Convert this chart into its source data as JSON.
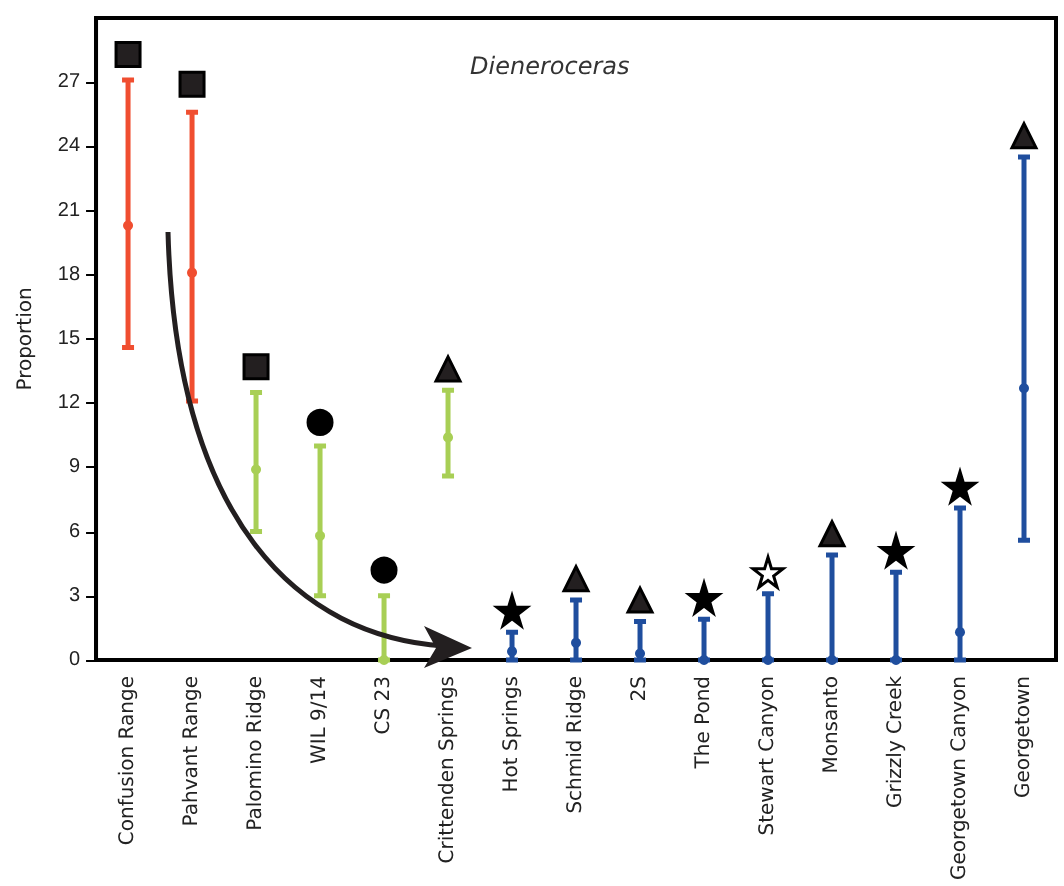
{
  "chart_data": {
    "type": "scatter",
    "title": "Dieneroceras",
    "ylabel": "Proportion",
    "categories": [
      "Confusion Range",
      "Pahvant Range",
      "Palomino Ridge",
      "WIL 9/14",
      "CS 23",
      "Crittenden Springs",
      "Hot Springs",
      "Schmid Ridge",
      "2S",
      "The Pond",
      "Stewart Canyon",
      "Monsanto",
      "Grizzly Creek",
      "Georgetown Canyon",
      "Georgetown"
    ],
    "ylim": [
      0,
      30
    ],
    "yticks": [
      0,
      3,
      6,
      9,
      12,
      15,
      18,
      21,
      24,
      27
    ],
    "grid": false,
    "series": [
      {
        "marker": "circle",
        "colors": [
          "#f04e30",
          "#f04e30",
          "#a8cf55",
          "#a8cf55",
          "#a8cf55",
          "#a8cf55",
          "#1f4e9e",
          "#1f4e9e",
          "#1f4e9e",
          "#1f4e9e",
          "#1f4e9e",
          "#1f4e9e",
          "#1f4e9e",
          "#1f4e9e",
          "#1f4e9e"
        ],
        "values": [
          20.3,
          18.1,
          8.9,
          5.8,
          0,
          10.4,
          0.4,
          0.8,
          0.3,
          0,
          0,
          0,
          0,
          1.3,
          12.7
        ],
        "errors": [
          [
            14.6,
            27.1
          ],
          [
            12.1,
            25.6
          ],
          [
            6.0,
            12.5
          ],
          [
            3.0,
            10.0
          ],
          [
            0,
            3.0
          ],
          [
            8.6,
            12.6
          ],
          [
            0,
            1.3
          ],
          [
            0,
            2.8
          ],
          [
            0,
            1.8
          ],
          [
            0,
            1.9
          ],
          [
            0,
            3.1
          ],
          [
            0,
            4.9
          ],
          [
            0,
            4.1
          ],
          [
            0,
            7.1
          ],
          [
            5.6,
            23.5
          ]
        ]
      },
      {
        "marker": "square",
        "color": "#231f20",
        "values": [
          28.3,
          26.9,
          13.7,
          null,
          null,
          null,
          null,
          null,
          null,
          null,
          null,
          null,
          null,
          null,
          null
        ]
      },
      {
        "marker": "circle",
        "color": "#000000",
        "values": [
          null,
          null,
          null,
          11.1,
          4.2,
          null,
          null,
          null,
          null,
          null,
          null,
          null,
          null,
          null,
          null
        ]
      },
      {
        "marker": "triangle",
        "color": "#231f20",
        "values": [
          null,
          null,
          null,
          null,
          null,
          13.6,
          null,
          3.8,
          2.8,
          null,
          null,
          5.9,
          null,
          null,
          24.5
        ]
      },
      {
        "marker": "star",
        "color": "#000000",
        "values": [
          null,
          null,
          null,
          null,
          null,
          null,
          2.3,
          null,
          null,
          2.9,
          null,
          null,
          5.1,
          8.1,
          null
        ]
      },
      {
        "marker": "star",
        "color": "#ffffff",
        "values": [
          null,
          null,
          null,
          null,
          null,
          null,
          null,
          null,
          null,
          null,
          4.1,
          null,
          null,
          null,
          null
        ]
      }
    ]
  }
}
